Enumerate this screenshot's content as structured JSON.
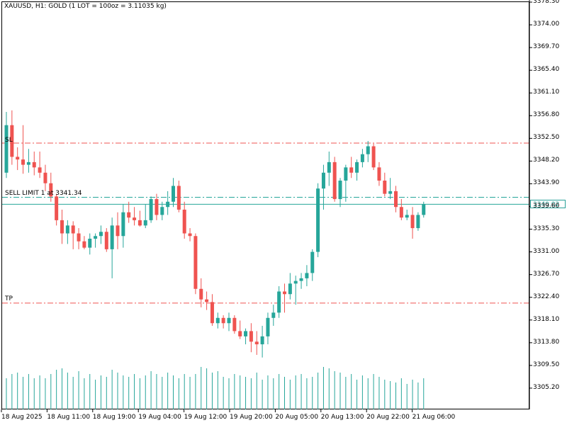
{
  "header": {
    "title": "XAUUSD, H1:  GOLD (1 LOT = 100oz = 3.11035 kg)"
  },
  "levels": {
    "sl_label": "SL",
    "tp_label": "TP",
    "sell_limit_label": "SELL LIMIT 1 at 3341.34",
    "sl_price": 3351.6,
    "tp_price": 3321.3,
    "sell_limit_price": 3341.34,
    "current_price_label": "3340.02",
    "current_price": 3340.02
  },
  "y_axis": {
    "labels": [
      "3378.30",
      "3374.00",
      "3369.70",
      "3365.40",
      "3361.10",
      "3356.80",
      "3352.50",
      "3348.20",
      "3343.90",
      "3339.60",
      "3335.30",
      "3331.00",
      "3326.70",
      "3322.40",
      "3318.10",
      "3313.80",
      "3309.50",
      "3305.20"
    ],
    "min": 3300.9,
    "max": 3378.3
  },
  "x_axis": {
    "labels": [
      "18 Aug 2025",
      "18 Aug 11:00",
      "18 Aug 19:00",
      "19 Aug 04:00",
      "19 Aug 12:00",
      "19 Aug 20:00",
      "20 Aug 05:00",
      "20 Aug 13:00",
      "20 Aug 22:00",
      "21 Aug 06:00"
    ]
  },
  "colors": {
    "up": "#26a69a",
    "down": "#ef5350",
    "level": "#ef5350",
    "sell_limit": "#26a69a",
    "current": "#26a69a",
    "volume": "#26a69a"
  },
  "chart_data": {
    "type": "candlestick",
    "candles": [
      {
        "o": 3346.0,
        "h": 3357.5,
        "l": 3345.0,
        "c": 3355.0
      },
      {
        "o": 3355.0,
        "h": 3357.8,
        "l": 3347.5,
        "c": 3349.0
      },
      {
        "o": 3349.0,
        "h": 3350.8,
        "l": 3346.5,
        "c": 3348.5
      },
      {
        "o": 3348.5,
        "h": 3355.0,
        "l": 3345.8,
        "c": 3347.5
      },
      {
        "o": 3347.5,
        "h": 3350.5,
        "l": 3346.0,
        "c": 3348.0
      },
      {
        "o": 3348.0,
        "h": 3350.0,
        "l": 3345.5,
        "c": 3347.0
      },
      {
        "o": 3347.0,
        "h": 3350.0,
        "l": 3345.0,
        "c": 3346.0
      },
      {
        "o": 3346.0,
        "h": 3347.5,
        "l": 3342.5,
        "c": 3344.0
      },
      {
        "o": 3344.0,
        "h": 3346.0,
        "l": 3340.5,
        "c": 3341.5
      },
      {
        "o": 3341.5,
        "h": 3342.0,
        "l": 3336.0,
        "c": 3337.0
      },
      {
        "o": 3337.0,
        "h": 3339.0,
        "l": 3332.5,
        "c": 3334.5
      },
      {
        "o": 3334.5,
        "h": 3337.0,
        "l": 3332.5,
        "c": 3336.0
      },
      {
        "o": 3336.0,
        "h": 3336.8,
        "l": 3331.5,
        "c": 3334.5
      },
      {
        "o": 3334.5,
        "h": 3335.5,
        "l": 3331.5,
        "c": 3333.0
      },
      {
        "o": 3333.0,
        "h": 3334.0,
        "l": 3331.5,
        "c": 3331.8
      },
      {
        "o": 3331.8,
        "h": 3334.5,
        "l": 3330.5,
        "c": 3333.5
      },
      {
        "o": 3333.5,
        "h": 3334.5,
        "l": 3331.8,
        "c": 3334.0
      },
      {
        "o": 3334.0,
        "h": 3336.0,
        "l": 3332.5,
        "c": 3334.8
      },
      {
        "o": 3334.8,
        "h": 3335.5,
        "l": 3331.0,
        "c": 3331.5
      },
      {
        "o": 3331.5,
        "h": 3337.5,
        "l": 3326.0,
        "c": 3336.0
      },
      {
        "o": 3336.0,
        "h": 3338.5,
        "l": 3331.5,
        "c": 3334.0
      },
      {
        "o": 3334.0,
        "h": 3340.0,
        "l": 3331.8,
        "c": 3338.5
      },
      {
        "o": 3338.5,
        "h": 3340.5,
        "l": 3336.5,
        "c": 3337.5
      },
      {
        "o": 3337.5,
        "h": 3339.5,
        "l": 3336.0,
        "c": 3337.0
      },
      {
        "o": 3337.0,
        "h": 3338.8,
        "l": 3335.8,
        "c": 3336.0
      },
      {
        "o": 3336.0,
        "h": 3340.0,
        "l": 3335.5,
        "c": 3337.0
      },
      {
        "o": 3337.0,
        "h": 3341.5,
        "l": 3336.5,
        "c": 3341.0
      },
      {
        "o": 3341.0,
        "h": 3342.0,
        "l": 3337.0,
        "c": 3338.0
      },
      {
        "o": 3338.0,
        "h": 3340.5,
        "l": 3337.0,
        "c": 3339.5
      },
      {
        "o": 3339.5,
        "h": 3342.5,
        "l": 3338.0,
        "c": 3340.5
      },
      {
        "o": 3340.5,
        "h": 3345.0,
        "l": 3339.5,
        "c": 3343.5
      },
      {
        "o": 3343.5,
        "h": 3344.5,
        "l": 3338.5,
        "c": 3339.0
      },
      {
        "o": 3339.0,
        "h": 3340.5,
        "l": 3333.5,
        "c": 3334.5
      },
      {
        "o": 3334.5,
        "h": 3335.5,
        "l": 3333.0,
        "c": 3334.0
      },
      {
        "o": 3334.0,
        "h": 3334.5,
        "l": 3323.0,
        "c": 3324.0
      },
      {
        "o": 3324.0,
        "h": 3326.0,
        "l": 3320.5,
        "c": 3322.0
      },
      {
        "o": 3322.0,
        "h": 3323.5,
        "l": 3320.0,
        "c": 3321.5
      },
      {
        "o": 3321.5,
        "h": 3323.0,
        "l": 3317.0,
        "c": 3317.5
      },
      {
        "o": 3317.5,
        "h": 3319.5,
        "l": 3316.5,
        "c": 3318.5
      },
      {
        "o": 3318.5,
        "h": 3319.0,
        "l": 3316.5,
        "c": 3317.5
      },
      {
        "o": 3317.5,
        "h": 3319.5,
        "l": 3316.0,
        "c": 3318.5
      },
      {
        "o": 3318.5,
        "h": 3319.0,
        "l": 3315.5,
        "c": 3316.0
      },
      {
        "o": 3316.0,
        "h": 3318.0,
        "l": 3314.5,
        "c": 3315.0
      },
      {
        "o": 3315.0,
        "h": 3316.5,
        "l": 3313.5,
        "c": 3316.0
      },
      {
        "o": 3316.0,
        "h": 3317.5,
        "l": 3312.0,
        "c": 3314.0
      },
      {
        "o": 3314.0,
        "h": 3316.0,
        "l": 3311.5,
        "c": 3313.5
      },
      {
        "o": 3313.5,
        "h": 3317.0,
        "l": 3311.0,
        "c": 3315.0
      },
      {
        "o": 3315.0,
        "h": 3319.5,
        "l": 3313.5,
        "c": 3318.5
      },
      {
        "o": 3318.5,
        "h": 3321.0,
        "l": 3317.0,
        "c": 3319.5
      },
      {
        "o": 3319.5,
        "h": 3324.5,
        "l": 3318.5,
        "c": 3323.5
      },
      {
        "o": 3323.5,
        "h": 3325.0,
        "l": 3319.5,
        "c": 3323.0
      },
      {
        "o": 3323.0,
        "h": 3327.0,
        "l": 3322.0,
        "c": 3325.0
      },
      {
        "o": 3325.0,
        "h": 3326.5,
        "l": 3321.0,
        "c": 3325.5
      },
      {
        "o": 3325.5,
        "h": 3327.0,
        "l": 3324.0,
        "c": 3326.0
      },
      {
        "o": 3326.0,
        "h": 3328.5,
        "l": 3324.5,
        "c": 3327.0
      },
      {
        "o": 3327.0,
        "h": 3331.5,
        "l": 3325.5,
        "c": 3331.0
      },
      {
        "o": 3331.0,
        "h": 3344.0,
        "l": 3330.0,
        "c": 3343.0
      },
      {
        "o": 3343.0,
        "h": 3347.5,
        "l": 3339.0,
        "c": 3346.0
      },
      {
        "o": 3346.0,
        "h": 3350.0,
        "l": 3343.5,
        "c": 3348.0
      },
      {
        "o": 3348.0,
        "h": 3349.0,
        "l": 3340.5,
        "c": 3341.0
      },
      {
        "o": 3341.0,
        "h": 3345.0,
        "l": 3339.5,
        "c": 3344.5
      },
      {
        "o": 3344.5,
        "h": 3347.5,
        "l": 3340.5,
        "c": 3347.0
      },
      {
        "o": 3347.0,
        "h": 3349.0,
        "l": 3345.0,
        "c": 3346.0
      },
      {
        "o": 3346.0,
        "h": 3348.5,
        "l": 3344.5,
        "c": 3348.0
      },
      {
        "o": 3348.0,
        "h": 3350.5,
        "l": 3347.0,
        "c": 3349.5
      },
      {
        "o": 3349.5,
        "h": 3352.0,
        "l": 3348.0,
        "c": 3351.0
      },
      {
        "o": 3351.0,
        "h": 3351.5,
        "l": 3346.5,
        "c": 3347.0
      },
      {
        "o": 3347.0,
        "h": 3348.0,
        "l": 3343.5,
        "c": 3344.5
      },
      {
        "o": 3344.5,
        "h": 3346.0,
        "l": 3341.5,
        "c": 3342.0
      },
      {
        "o": 3342.0,
        "h": 3345.0,
        "l": 3341.0,
        "c": 3342.5
      },
      {
        "o": 3342.5,
        "h": 3343.5,
        "l": 3338.5,
        "c": 3339.5
      },
      {
        "o": 3339.5,
        "h": 3341.0,
        "l": 3337.0,
        "c": 3337.5
      },
      {
        "o": 3337.5,
        "h": 3339.0,
        "l": 3337.0,
        "c": 3338.0
      },
      {
        "o": 3338.0,
        "h": 3339.5,
        "l": 3333.5,
        "c": 3335.5
      },
      {
        "o": 3335.5,
        "h": 3338.5,
        "l": 3335.0,
        "c": 3338.0
      },
      {
        "o": 3338.0,
        "h": 3340.5,
        "l": 3337.5,
        "c": 3340.0
      }
    ],
    "volume": [
      22,
      25,
      26,
      23,
      25,
      22,
      24,
      22,
      25,
      28,
      29,
      26,
      23,
      27,
      22,
      25,
      21,
      24,
      23,
      28,
      26,
      24,
      23,
      25,
      22,
      24,
      27,
      25,
      23,
      26,
      24,
      22,
      25,
      23,
      25,
      30,
      29,
      26,
      27,
      23,
      22,
      25,
      24,
      23,
      22,
      26,
      21,
      24,
      22,
      25,
      23,
      21,
      24,
      25,
      22,
      23,
      26,
      30,
      29,
      27,
      26,
      23,
      25,
      21,
      24,
      22,
      25,
      23,
      21,
      20,
      19,
      22,
      18,
      21,
      19,
      22
    ]
  }
}
